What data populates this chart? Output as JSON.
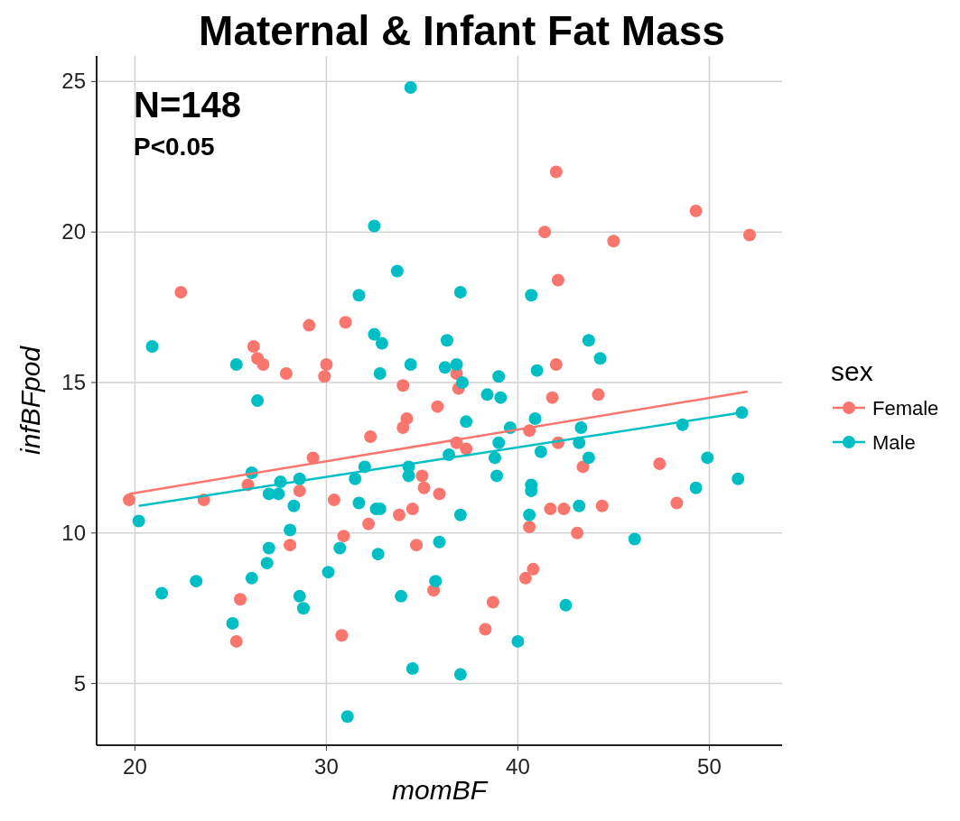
{
  "chart_data": {
    "type": "scatter",
    "title": "Maternal & Infant Fat Mass",
    "xlabel": "momBF",
    "ylabel": "infBFpod",
    "legend_title": "sex",
    "legend": "right",
    "grid": true,
    "marker": "circle",
    "xlim": [
      18.0,
      53.8
    ],
    "ylim": [
      2.95,
      25.85
    ],
    "xticks": [
      20,
      30,
      40,
      50
    ],
    "yticks": [
      5,
      10,
      15,
      20,
      25
    ],
    "annotations": [
      "N=148",
      "P<0.05"
    ],
    "series": [
      {
        "name": "Female",
        "color": "#f8766d",
        "x": [
          19.7,
          23.6,
          22.4,
          26.2,
          26.4,
          26.7,
          27.9,
          29.1,
          30.0,
          29.9,
          31.0,
          34.0,
          42.0,
          49.3,
          41.4,
          45.0,
          52.1,
          42.1,
          36.8,
          36.9,
          42.0,
          41.8,
          44.2,
          35.8,
          25.9,
          28.6,
          29.3,
          28.1,
          25.5,
          25.3,
          30.4,
          32.3,
          34.0,
          34.2,
          35.0,
          35.1,
          32.2,
          33.8,
          34.5,
          30.9,
          34.7,
          30.8,
          35.6,
          36.8,
          37.3,
          40.6,
          42.1,
          43.4,
          47.4,
          48.3,
          35.9,
          41.7,
          42.4,
          44.4,
          40.6,
          43.1,
          40.4,
          40.8,
          38.7,
          38.3
        ],
        "values": [
          11.1,
          11.1,
          18.0,
          16.2,
          15.8,
          15.6,
          15.3,
          16.9,
          15.6,
          15.2,
          17.0,
          14.9,
          22.0,
          20.7,
          20.0,
          19.7,
          19.9,
          18.4,
          15.3,
          14.8,
          15.6,
          14.5,
          14.6,
          14.2,
          11.6,
          11.4,
          12.5,
          9.6,
          7.8,
          6.4,
          11.1,
          13.2,
          13.5,
          13.8,
          11.9,
          11.5,
          10.3,
          10.6,
          10.8,
          9.9,
          9.6,
          6.6,
          8.1,
          13.0,
          12.8,
          13.4,
          13.0,
          12.2,
          12.3,
          11.0,
          11.3,
          10.8,
          10.8,
          10.9,
          10.2,
          10.0,
          8.5,
          8.8,
          7.7,
          6.8
        ]
      },
      {
        "name": "Male",
        "color": "#00bfc4",
        "x": [
          34.4,
          32.5,
          33.7,
          31.7,
          32.5,
          32.9,
          20.9,
          25.3,
          32.8,
          34.4,
          26.4,
          37.0,
          40.7,
          36.3,
          43.7,
          44.3,
          36.2,
          36.8,
          37.1,
          39.0,
          41.0,
          38.4,
          39.1,
          20.2,
          26.1,
          27.6,
          27.0,
          27.5,
          28.6,
          28.3,
          28.1,
          27.0,
          26.9,
          26.1,
          25.1,
          21.4,
          23.2,
          28.6,
          28.8,
          31.5,
          32.0,
          34.3,
          34.3,
          31.7,
          32.6,
          32.8,
          30.7,
          32.7,
          30.1,
          33.9,
          34.5,
          31.1,
          35.7,
          35.9,
          37.3,
          36.4,
          39.6,
          40.9,
          39.0,
          38.8,
          38.9,
          41.2,
          43.3,
          43.2,
          43.7,
          48.6,
          51.7,
          49.9,
          51.5,
          49.3,
          40.7,
          40.7,
          43.2,
          40.6,
          46.1,
          37.0,
          42.5,
          40.0,
          37.0
        ],
        "values": [
          24.8,
          20.2,
          18.7,
          17.9,
          16.6,
          16.3,
          16.2,
          15.6,
          15.3,
          15.6,
          14.4,
          18.0,
          17.9,
          16.4,
          16.4,
          15.8,
          15.5,
          15.6,
          15.0,
          15.2,
          15.4,
          14.6,
          14.5,
          10.4,
          12.0,
          11.7,
          11.3,
          11.3,
          11.8,
          10.9,
          10.1,
          9.5,
          9.0,
          8.5,
          7.0,
          8.0,
          8.4,
          7.9,
          7.5,
          11.8,
          12.2,
          12.2,
          11.9,
          11.0,
          10.8,
          10.8,
          9.5,
          9.3,
          8.7,
          7.9,
          5.5,
          3.9,
          8.4,
          9.7,
          13.7,
          12.6,
          13.5,
          13.8,
          13.0,
          12.5,
          11.9,
          12.7,
          13.5,
          13.0,
          12.5,
          13.6,
          14.0,
          12.5,
          11.8,
          11.5,
          11.6,
          11.4,
          10.9,
          10.6,
          9.8,
          10.6,
          7.6,
          6.4,
          5.3
        ]
      },
      {
        "color": "#f8766d",
        "type": "line",
        "marker": "none",
        "x": [
          19.7,
          52.0
        ],
        "values": [
          11.3,
          14.7
        ]
      },
      {
        "color": "#00bfc4",
        "type": "line",
        "marker": "none",
        "x": [
          20.2,
          51.7
        ],
        "values": [
          10.9,
          14.0
        ]
      }
    ]
  }
}
